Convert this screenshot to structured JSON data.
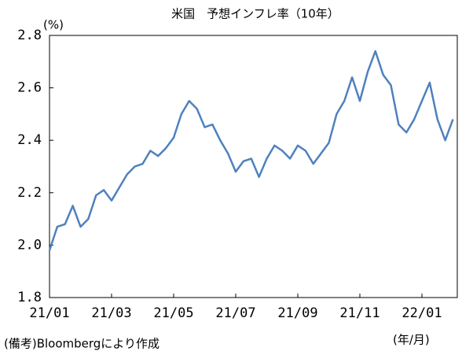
{
  "chart_data": {
    "type": "line",
    "title": "米国　予想インフレ率（10年）",
    "y_unit": "(%)",
    "x_unit": "(年/月)",
    "source": "(備考)Bloombergにより作成",
    "categories": [
      "21/01",
      null,
      null,
      null,
      null,
      null,
      null,
      null,
      "21/03",
      null,
      null,
      null,
      null,
      null,
      null,
      null,
      "21/05",
      null,
      null,
      null,
      null,
      null,
      null,
      null,
      "21/07",
      null,
      null,
      null,
      null,
      null,
      null,
      null,
      "21/09",
      null,
      null,
      null,
      null,
      null,
      null,
      null,
      "21/11",
      null,
      null,
      null,
      null,
      null,
      null,
      null,
      "22/01",
      null,
      null,
      null,
      null
    ],
    "values": [
      1.98,
      2.07,
      2.08,
      2.15,
      2.07,
      2.1,
      2.19,
      2.21,
      2.17,
      2.22,
      2.27,
      2.3,
      2.31,
      2.36,
      2.34,
      2.37,
      2.41,
      2.5,
      2.55,
      2.52,
      2.45,
      2.46,
      2.4,
      2.35,
      2.28,
      2.32,
      2.33,
      2.26,
      2.33,
      2.38,
      2.36,
      2.33,
      2.38,
      2.36,
      2.31,
      2.35,
      2.39,
      2.5,
      2.55,
      2.64,
      2.55,
      2.66,
      2.74,
      2.65,
      2.61,
      2.46,
      2.43,
      2.48,
      2.55,
      2.62,
      2.48,
      2.4,
      2.48
    ],
    "color": "#4f81bd",
    "ylim": [
      1.8,
      2.8
    ],
    "yticks": [
      1.8,
      {
        "value": 2,
        "label": "2.0"
      },
      2.2,
      2.4,
      2.6,
      2.8
    ],
    "grid": false
  }
}
